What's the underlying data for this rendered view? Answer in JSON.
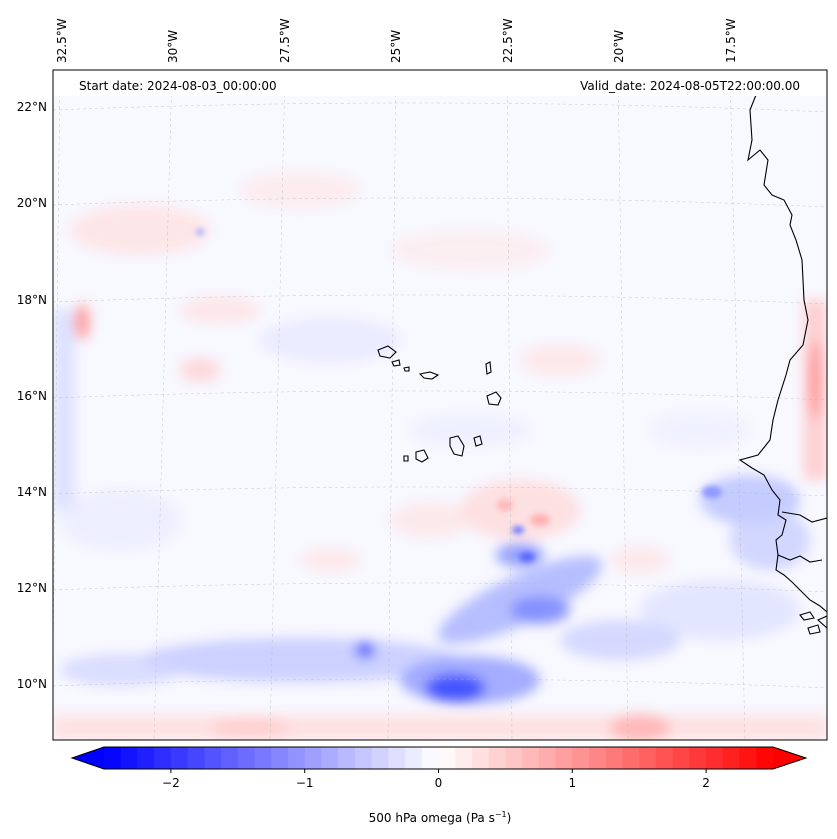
{
  "map": {
    "start_label": "Start date: 2024-08-03_00:00:00",
    "valid_label": "Valid_date: 2024-08-05T22:00:00.00",
    "lon_labels": [
      "32.5°W",
      "30°W",
      "27.5°W",
      "25°W",
      "22.5°W",
      "20°W",
      "17.5°W"
    ],
    "lat_labels": [
      "22°N",
      "20°N",
      "18°N",
      "16°N",
      "14°N",
      "12°N",
      "10°N"
    ],
    "extent": {
      "lon_min": -33.0,
      "lon_max": -15.5,
      "lat_min": 8.9,
      "lat_max": 22.8
    },
    "colormap": "bwr",
    "colors": {
      "negative": "#0000ff",
      "zero": "#ffffff",
      "positive": "#ff0000",
      "coast": "#000000",
      "grid": "#b0b0b0"
    }
  },
  "colorbar": {
    "ticks": [
      "−2",
      "−1",
      "0",
      "1",
      "2"
    ],
    "tick_values": [
      -2,
      -1,
      0,
      1,
      2
    ],
    "range": [
      -2.5,
      2.5
    ],
    "label_main": "500 hPa omega (Pa s",
    "label_sup": "−1",
    "label_end": ")"
  }
}
